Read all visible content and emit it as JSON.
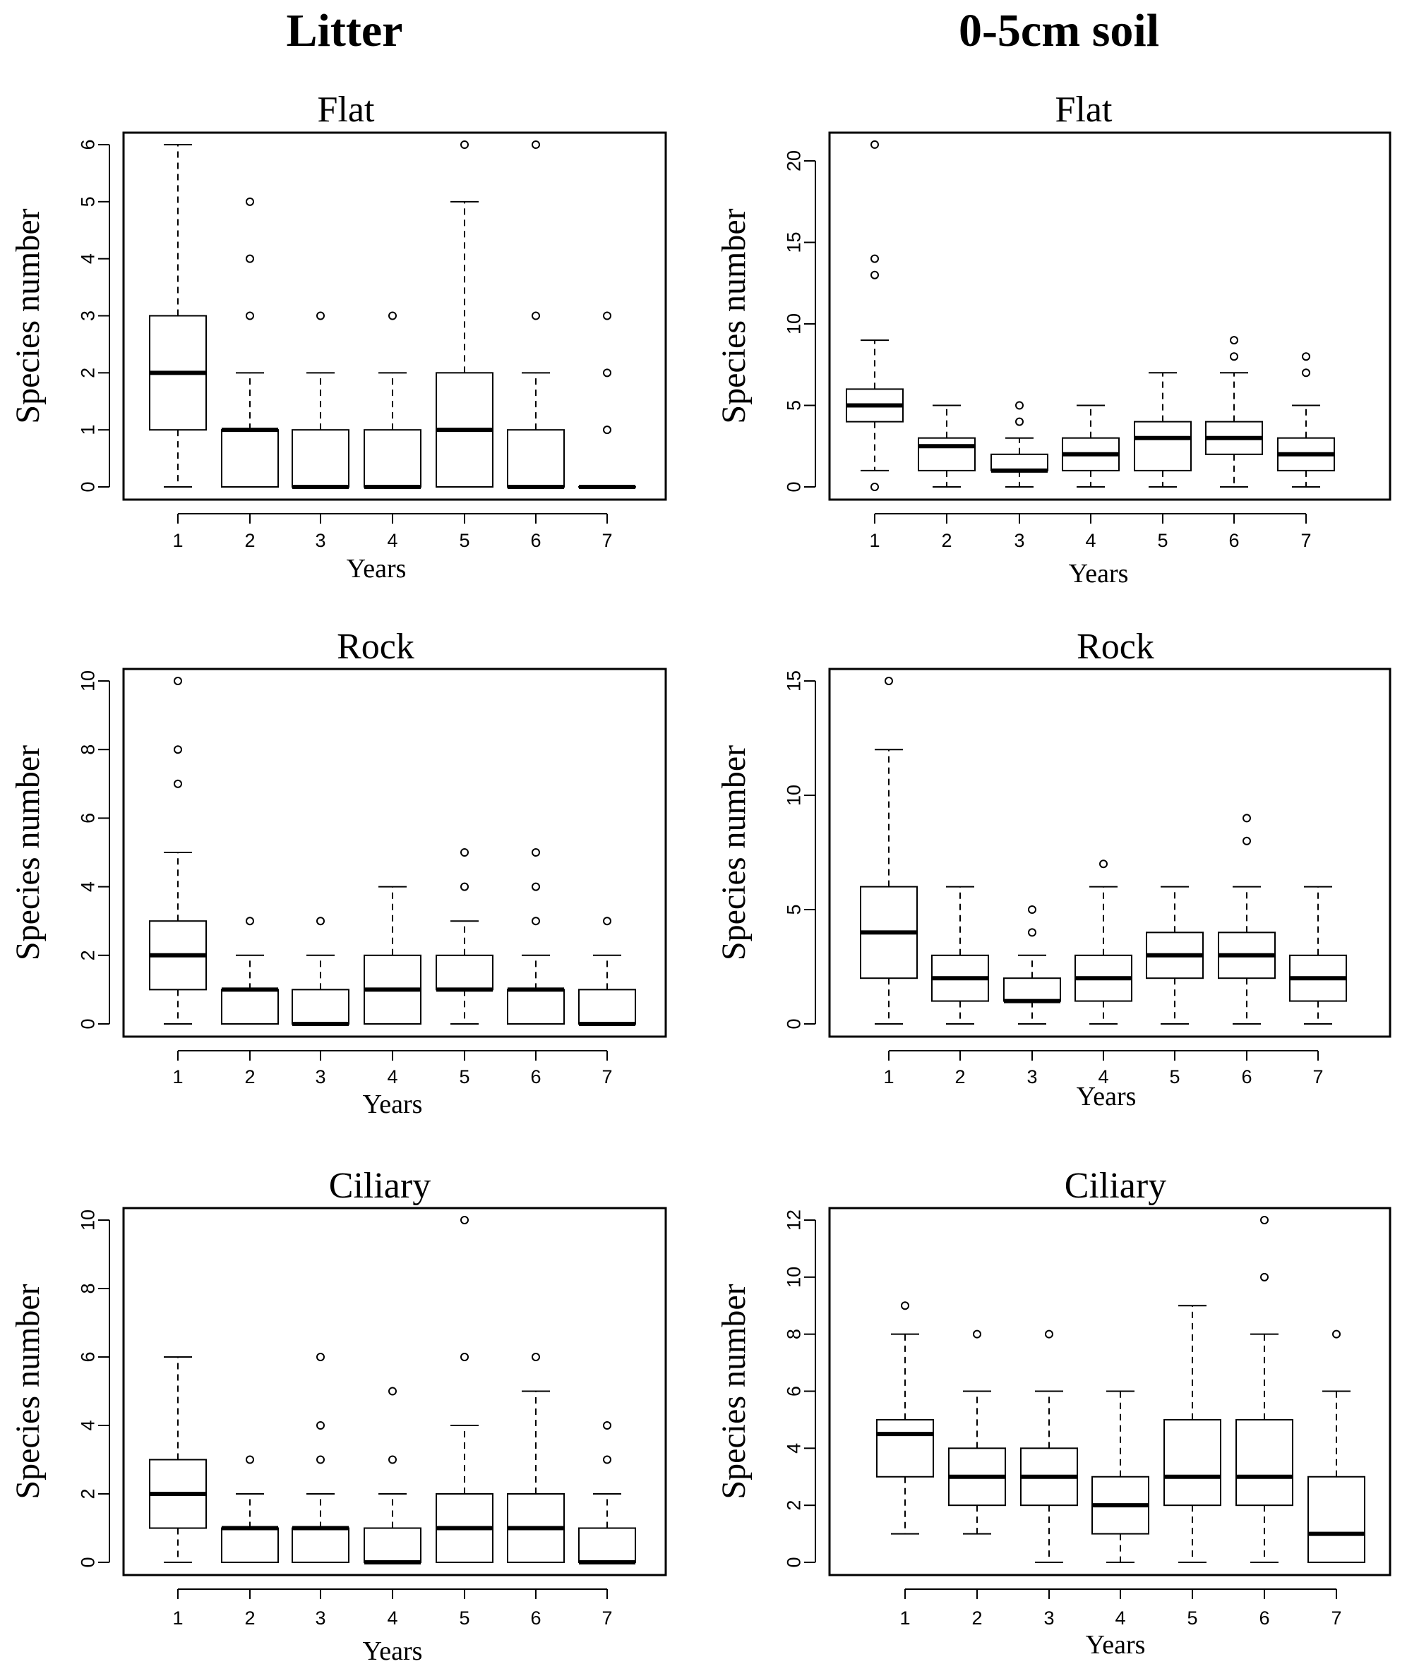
{
  "columns": {
    "left": "Litter",
    "right": "0-5cm soil"
  },
  "chart_data": [
    {
      "type": "boxplot",
      "column": "Litter",
      "title": "Flat",
      "xlabel": "Years",
      "ylabel": "Species number",
      "ylim": [
        0,
        6
      ],
      "yticks": [
        0,
        1,
        2,
        3,
        4,
        5,
        6
      ],
      "categories": [
        "1",
        "2",
        "3",
        "4",
        "5",
        "6",
        "7"
      ],
      "boxes": [
        {
          "min": 0,
          "q1": 1,
          "median": 2,
          "q3": 3,
          "max": 6,
          "outliers": []
        },
        {
          "min": 0,
          "q1": 0,
          "median": 1,
          "q3": 1,
          "max": 2,
          "outliers": [
            3,
            4,
            5
          ]
        },
        {
          "min": 0,
          "q1": 0,
          "median": 0,
          "q3": 1,
          "max": 2,
          "outliers": [
            3
          ]
        },
        {
          "min": 0,
          "q1": 0,
          "median": 0,
          "q3": 1,
          "max": 2,
          "outliers": [
            3
          ]
        },
        {
          "min": 0,
          "q1": 0,
          "median": 1,
          "q3": 2,
          "max": 5,
          "outliers": [
            6
          ]
        },
        {
          "min": 0,
          "q1": 0,
          "median": 0,
          "q3": 1,
          "max": 2,
          "outliers": [
            3,
            6
          ]
        },
        {
          "min": 0,
          "q1": 0,
          "median": 0,
          "q3": 0,
          "max": 0,
          "outliers": [
            1,
            2,
            3
          ]
        }
      ]
    },
    {
      "type": "boxplot",
      "column": "0-5cm soil",
      "title": "Flat",
      "xlabel": "Years",
      "ylabel": "Species number",
      "ylim": [
        0,
        21
      ],
      "yticks": [
        0,
        5,
        10,
        15,
        20
      ],
      "categories": [
        "1",
        "2",
        "3",
        "4",
        "5",
        "6",
        "7"
      ],
      "boxes": [
        {
          "min": 1,
          "q1": 4,
          "median": 5,
          "q3": 6,
          "max": 9,
          "outliers": [
            0,
            13,
            14,
            21
          ]
        },
        {
          "min": 0,
          "q1": 1,
          "median": 2.5,
          "q3": 3,
          "max": 5,
          "outliers": []
        },
        {
          "min": 0,
          "q1": 1,
          "median": 1,
          "q3": 2,
          "max": 3,
          "outliers": [
            4,
            5
          ]
        },
        {
          "min": 0,
          "q1": 1,
          "median": 2,
          "q3": 3,
          "max": 5,
          "outliers": []
        },
        {
          "min": 0,
          "q1": 1,
          "median": 3,
          "q3": 4,
          "max": 7,
          "outliers": []
        },
        {
          "min": 0,
          "q1": 2,
          "median": 3,
          "q3": 4,
          "max": 7,
          "outliers": [
            8,
            9
          ]
        },
        {
          "min": 0,
          "q1": 1,
          "median": 2,
          "q3": 3,
          "max": 5,
          "outliers": [
            7,
            8
          ]
        }
      ]
    },
    {
      "type": "boxplot",
      "column": "Litter",
      "title": "Rock",
      "xlabel": "Years",
      "ylabel": "Species number",
      "ylim": [
        0,
        10
      ],
      "yticks": [
        0,
        2,
        4,
        6,
        8,
        10
      ],
      "categories": [
        "1",
        "2",
        "3",
        "4",
        "5",
        "6",
        "7"
      ],
      "boxes": [
        {
          "min": 0,
          "q1": 1,
          "median": 2,
          "q3": 3,
          "max": 5,
          "outliers": [
            7,
            8,
            10
          ]
        },
        {
          "min": 0,
          "q1": 0,
          "median": 1,
          "q3": 1,
          "max": 2,
          "outliers": [
            3
          ]
        },
        {
          "min": 0,
          "q1": 0,
          "median": 0,
          "q3": 1,
          "max": 2,
          "outliers": [
            3
          ]
        },
        {
          "min": 0,
          "q1": 0,
          "median": 1,
          "q3": 2,
          "max": 4,
          "outliers": []
        },
        {
          "min": 0,
          "q1": 1,
          "median": 1,
          "q3": 2,
          "max": 3,
          "outliers": [
            4,
            5
          ]
        },
        {
          "min": 0,
          "q1": 0,
          "median": 1,
          "q3": 1,
          "max": 2,
          "outliers": [
            3,
            4,
            5
          ]
        },
        {
          "min": 0,
          "q1": 0,
          "median": 0,
          "q3": 1,
          "max": 2,
          "outliers": [
            3
          ]
        }
      ]
    },
    {
      "type": "boxplot",
      "column": "0-5cm soil",
      "title": "Rock",
      "xlabel": "Years",
      "ylabel": "Species number",
      "ylim": [
        0,
        15
      ],
      "yticks": [
        0,
        5,
        10,
        15
      ],
      "categories": [
        "1",
        "2",
        "3",
        "4",
        "5",
        "6",
        "7"
      ],
      "boxes": [
        {
          "min": 0,
          "q1": 2,
          "median": 4,
          "q3": 6,
          "max": 12,
          "outliers": [
            15
          ]
        },
        {
          "min": 0,
          "q1": 1,
          "median": 2,
          "q3": 3,
          "max": 6,
          "outliers": []
        },
        {
          "min": 0,
          "q1": 1,
          "median": 1,
          "q3": 2,
          "max": 3,
          "outliers": [
            4,
            5
          ]
        },
        {
          "min": 0,
          "q1": 1,
          "median": 2,
          "q3": 3,
          "max": 6,
          "outliers": [
            7
          ]
        },
        {
          "min": 0,
          "q1": 2,
          "median": 3,
          "q3": 4,
          "max": 6,
          "outliers": []
        },
        {
          "min": 0,
          "q1": 2,
          "median": 3,
          "q3": 4,
          "max": 6,
          "outliers": [
            8,
            9
          ]
        },
        {
          "min": 0,
          "q1": 1,
          "median": 2,
          "q3": 3,
          "max": 6,
          "outliers": []
        }
      ]
    },
    {
      "type": "boxplot",
      "column": "Litter",
      "title": "Ciliary",
      "xlabel": "Years",
      "ylabel": "Species number",
      "ylim": [
        0,
        10
      ],
      "yticks": [
        0,
        2,
        4,
        6,
        8,
        10
      ],
      "categories": [
        "1",
        "2",
        "3",
        "4",
        "5",
        "6",
        "7"
      ],
      "boxes": [
        {
          "min": 0,
          "q1": 1,
          "median": 2,
          "q3": 3,
          "max": 6,
          "outliers": []
        },
        {
          "min": 0,
          "q1": 0,
          "median": 1,
          "q3": 1,
          "max": 2,
          "outliers": [
            3
          ]
        },
        {
          "min": 0,
          "q1": 0,
          "median": 1,
          "q3": 1,
          "max": 2,
          "outliers": [
            3,
            4,
            6
          ]
        },
        {
          "min": 0,
          "q1": 0,
          "median": 0,
          "q3": 1,
          "max": 2,
          "outliers": [
            3,
            5
          ]
        },
        {
          "min": 0,
          "q1": 0,
          "median": 1,
          "q3": 2,
          "max": 4,
          "outliers": [
            6,
            10
          ]
        },
        {
          "min": 0,
          "q1": 0,
          "median": 1,
          "q3": 2,
          "max": 5,
          "outliers": [
            6
          ]
        },
        {
          "min": 0,
          "q1": 0,
          "median": 0,
          "q3": 1,
          "max": 2,
          "outliers": [
            3,
            4
          ]
        }
      ]
    },
    {
      "type": "boxplot",
      "column": "0-5cm soil",
      "title": "Ciliary",
      "xlabel": "Years",
      "ylabel": "Species number",
      "ylim": [
        0,
        12
      ],
      "yticks": [
        0,
        2,
        4,
        6,
        8,
        10,
        12
      ],
      "categories": [
        "1",
        "2",
        "3",
        "4",
        "5",
        "6",
        "7"
      ],
      "boxes": [
        {
          "min": 1,
          "q1": 3,
          "median": 4.5,
          "q3": 5,
          "max": 8,
          "outliers": [
            9
          ]
        },
        {
          "min": 1,
          "q1": 2,
          "median": 3,
          "q3": 4,
          "max": 6,
          "outliers": [
            8
          ]
        },
        {
          "min": 0,
          "q1": 2,
          "median": 3,
          "q3": 4,
          "max": 6,
          "outliers": [
            8
          ]
        },
        {
          "min": 0,
          "q1": 1,
          "median": 2,
          "q3": 3,
          "max": 6,
          "outliers": []
        },
        {
          "min": 0,
          "q1": 2,
          "median": 3,
          "q3": 5,
          "max": 9,
          "outliers": []
        },
        {
          "min": 0,
          "q1": 2,
          "median": 3,
          "q3": 5,
          "max": 8,
          "outliers": [
            10,
            12
          ]
        },
        {
          "min": 0,
          "q1": 0,
          "median": 1,
          "q3": 3,
          "max": 6,
          "outliers": [
            8
          ]
        }
      ]
    }
  ]
}
